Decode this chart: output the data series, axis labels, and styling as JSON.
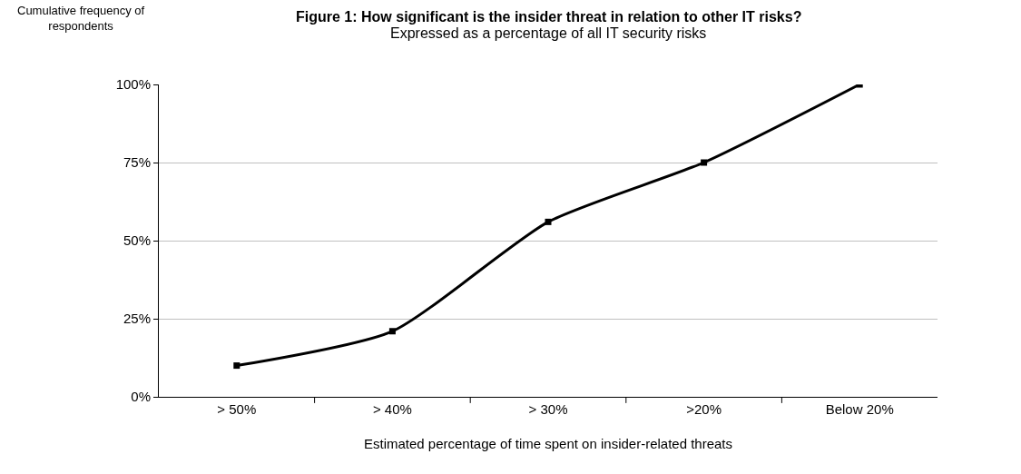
{
  "chart_data": {
    "type": "line",
    "title": "Figure 1: How significant is the insider threat in relation to other IT risks?",
    "subtitle": "Expressed as a percentage of all IT security risks",
    "xlabel": "Estimated percentage of time spent on insider-related threats",
    "ylabel": "Cumulative frequency of respondents",
    "categories": [
      "> 50%",
      "> 40%",
      "> 30%",
      ">20%",
      "Below 20%"
    ],
    "series": [
      {
        "color": "#000000",
        "values": [
          10,
          21,
          56,
          75,
          100
        ]
      }
    ],
    "ylim": [
      0,
      100
    ],
    "yticks": [
      {
        "value": 0,
        "label": "0%"
      },
      {
        "value": 25,
        "label": "25%"
      },
      {
        "value": 50,
        "label": "50%"
      },
      {
        "value": 75,
        "label": "75%"
      },
      {
        "value": 100,
        "label": "100%"
      }
    ],
    "grid": "y",
    "marker": "square",
    "line_style": "solid"
  }
}
